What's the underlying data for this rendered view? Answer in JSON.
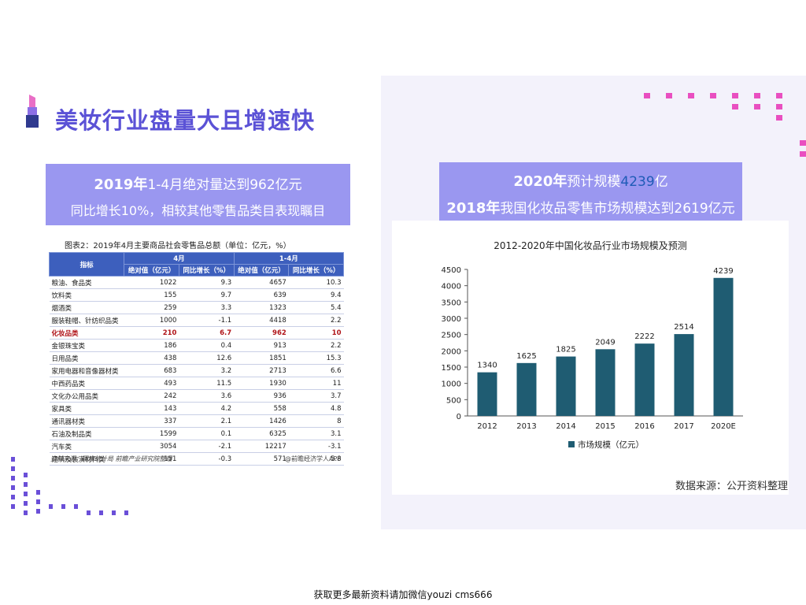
{
  "slide": {
    "title": "美妆行业盘量大且增速快"
  },
  "left_banner": {
    "line1_bold": "2019年",
    "line1_rest": "1-4月绝对量达到962亿元",
    "line2": "同比增长10%，相较其他零售品类目表现瞩目"
  },
  "right_banner": {
    "line1_bold": "2020年",
    "line1_mid": "预计规模",
    "line1_highlight": "4239",
    "line1_end": "亿",
    "line2_bold": "2018年",
    "line2_rest": "我国化妆品零售市场规模达到2619亿元"
  },
  "table": {
    "caption": "图表2：2019年4月主要商品社会零售品总额（单位：亿元，%）",
    "group_headers": [
      "4月",
      "1-4月"
    ],
    "headers": [
      "指标",
      "绝对值（亿元）",
      "同比增长（%）",
      "绝对值（亿元）",
      "同比增长（%）"
    ],
    "rows": [
      [
        "粮油、食品类",
        "1022",
        "9.3",
        "4657",
        "10.3"
      ],
      [
        "饮料类",
        "155",
        "9.7",
        "639",
        "9.4"
      ],
      [
        "烟酒类",
        "259",
        "3.3",
        "1323",
        "5.4"
      ],
      [
        "服装鞋帽、针纺织品类",
        "1000",
        "-1.1",
        "4418",
        "2.2"
      ],
      [
        "化妆品类",
        "210",
        "6.7",
        "962",
        "10"
      ],
      [
        "金银珠宝类",
        "186",
        "0.4",
        "913",
        "2.2"
      ],
      [
        "日用品类",
        "438",
        "12.6",
        "1851",
        "15.3"
      ],
      [
        "家用电器和音像器材类",
        "683",
        "3.2",
        "2713",
        "6.6"
      ],
      [
        "中西药品类",
        "493",
        "11.5",
        "1930",
        "11"
      ],
      [
        "文化办公用品类",
        "242",
        "3.6",
        "936",
        "3.7"
      ],
      [
        "家具类",
        "143",
        "4.2",
        "558",
        "4.8"
      ],
      [
        "通讯器材类",
        "337",
        "2.1",
        "1426",
        "8"
      ],
      [
        "石油及制品类",
        "1599",
        "0.1",
        "6325",
        "3.1"
      ],
      [
        "汽车类",
        "3054",
        "-2.1",
        "12217",
        "-3.1"
      ],
      [
        "建筑及装潢材料类",
        "151",
        "-0.3",
        "571",
        "5.8"
      ]
    ],
    "highlight_row": 4,
    "source": "资料来源：国家统计局  前瞻产业研究院整理",
    "app": "@前瞻经济学人APP"
  },
  "chart_data": {
    "type": "bar",
    "title": "2012-2020年中国化妆品行业市场规模及预测",
    "categories": [
      "2012",
      "2013",
      "2014",
      "2015",
      "2016",
      "2017",
      "2020E"
    ],
    "series": [
      {
        "name": "市场规模（亿元）",
        "values": [
          1340,
          1625,
          1825,
          2049,
          2222,
          2514,
          4239
        ]
      }
    ],
    "data_labels": [
      "1340",
      "1625",
      "1825",
      "2049",
      "2222",
      "2514",
      "4239"
    ],
    "ylim": [
      0,
      4500
    ],
    "yticks": [
      0,
      500,
      1000,
      1500,
      2000,
      2500,
      3000,
      3500,
      4000,
      4500
    ],
    "grid": false,
    "legend": "bottom-left",
    "bar_color": "#1f5c72"
  },
  "source_note": "数据来源：公开资料整理",
  "footer": "获取更多最新资料请加微信youzi cms666",
  "colors": {
    "accent": "#5b52d6",
    "banner": "#9a97f0",
    "dot_pink": "#e94fc0",
    "dot_purple": "#6a4fd8"
  }
}
